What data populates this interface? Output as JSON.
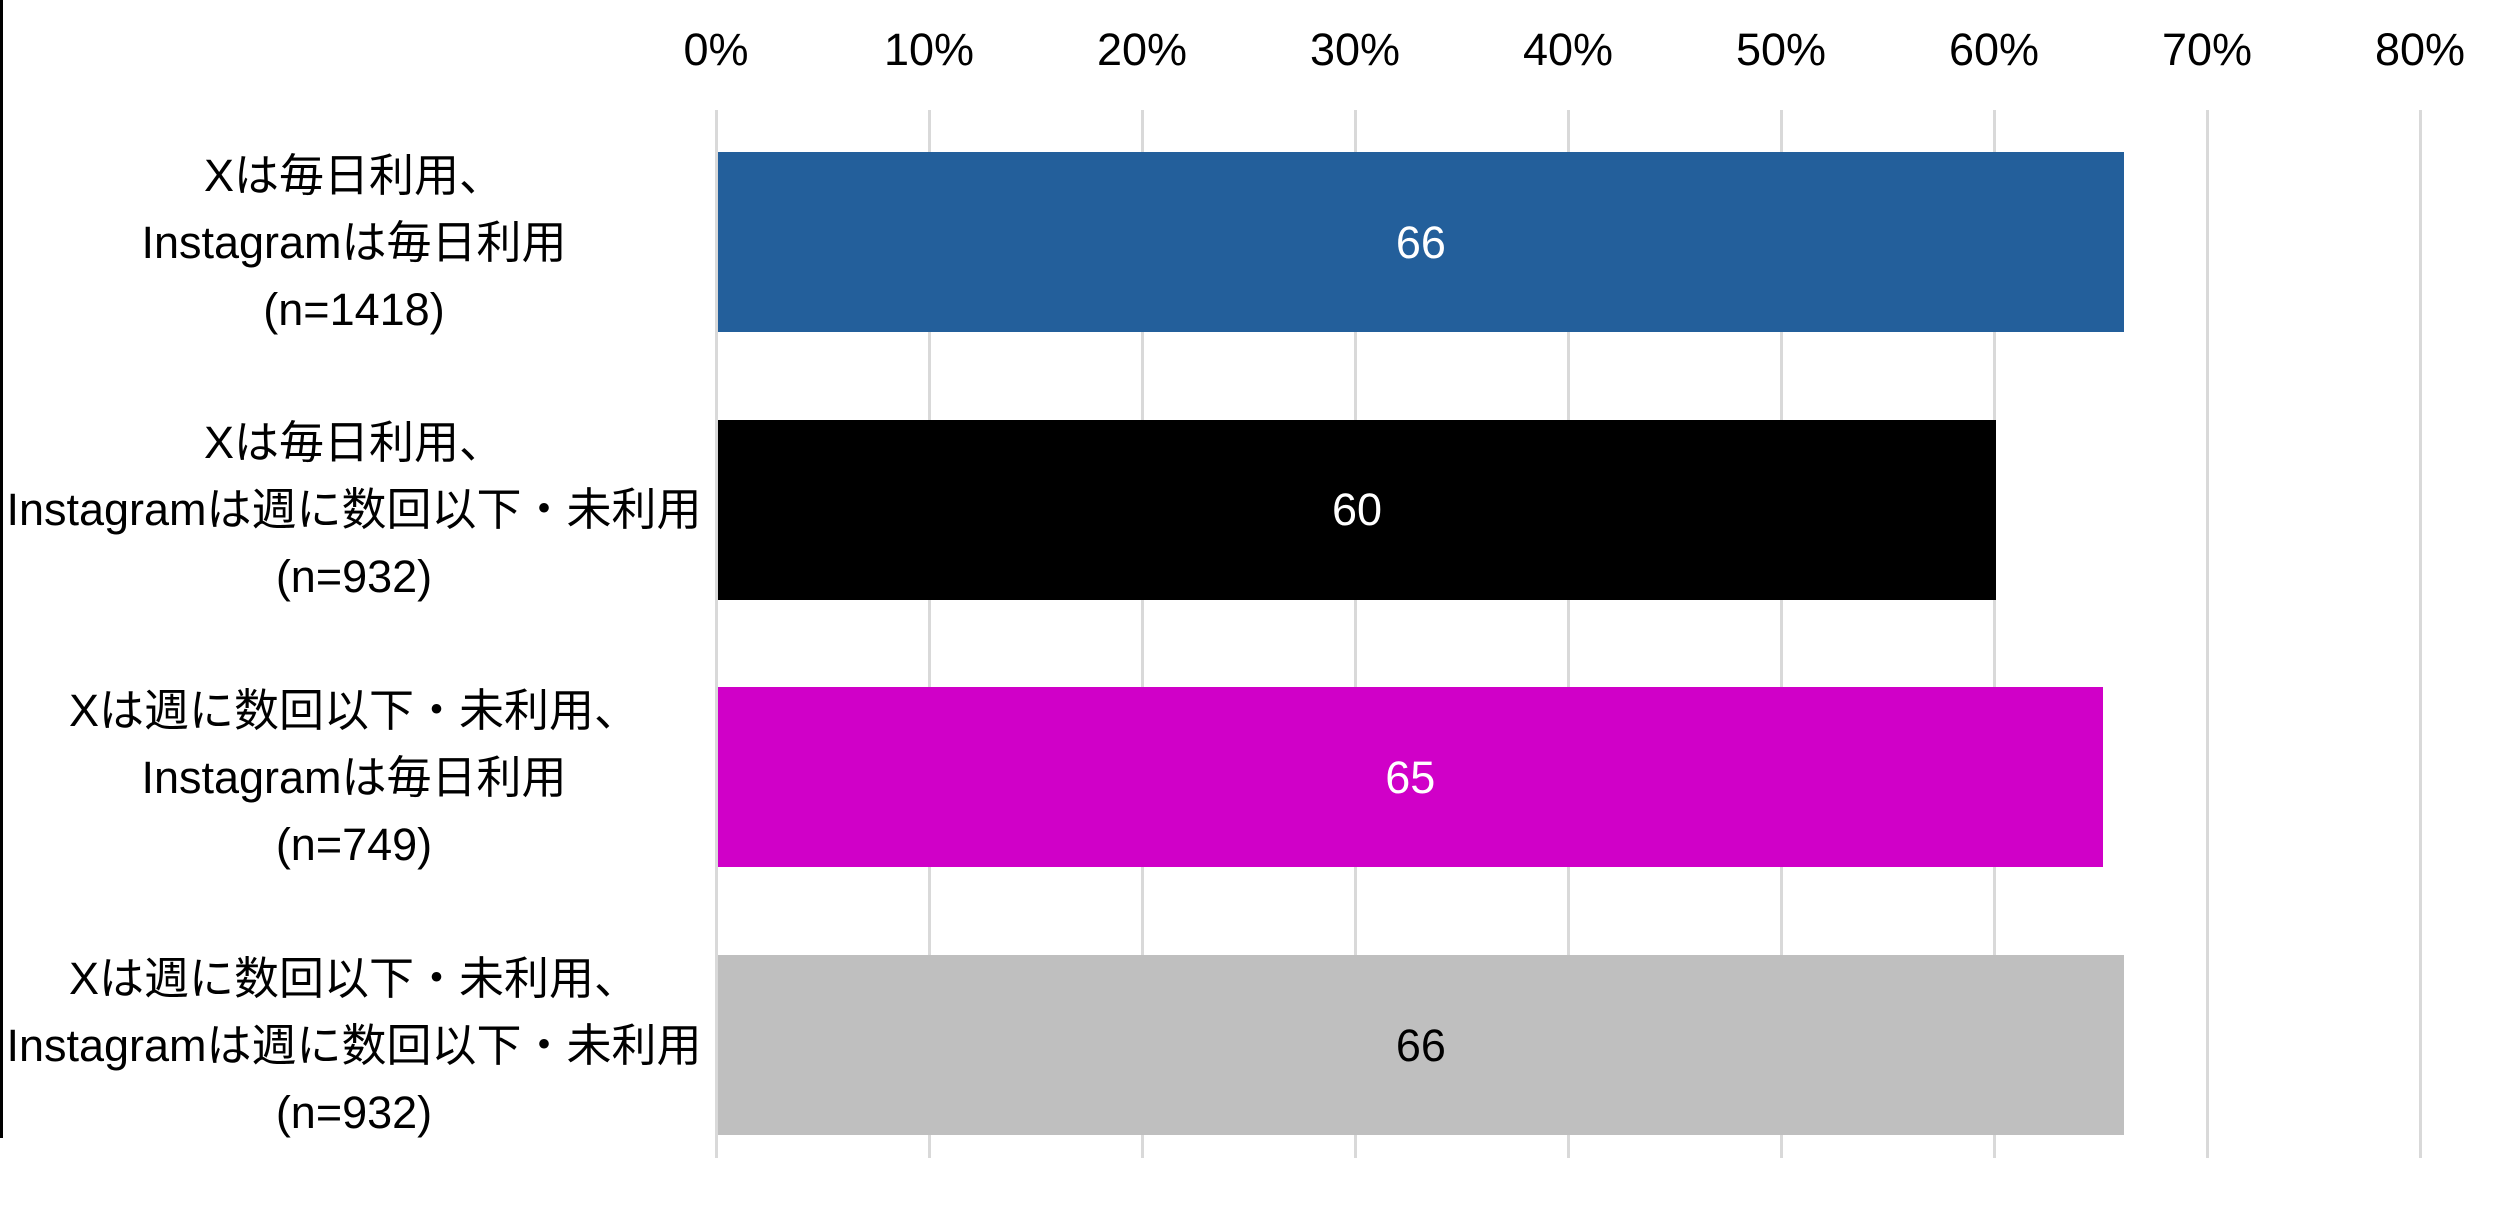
{
  "chart_data": {
    "type": "bar",
    "orientation": "horizontal",
    "title": "",
    "x_axis": {
      "position": "top",
      "min": 0,
      "max": 80,
      "tick_step": 10,
      "unit": "%",
      "ticks": [
        "0%",
        "10%",
        "20%",
        "30%",
        "40%",
        "50%",
        "60%",
        "70%",
        "80%"
      ],
      "grid": true
    },
    "categories": [
      {
        "lines": [
          "Xは毎日利用、",
          "Instagramは毎日利用",
          "(n=1418)"
        ]
      },
      {
        "lines": [
          "Xは毎日利用、",
          "Instagramは週に数回以下・未利用",
          "(n=932)"
        ]
      },
      {
        "lines": [
          "Xは週に数回以下・未利用、",
          "Instagramは毎日利用",
          "(n=749)"
        ]
      },
      {
        "lines": [
          "Xは週に数回以下・未利用、",
          "Instagramは週に数回以下・未利用",
          "(n=932)"
        ]
      }
    ],
    "values": [
      66,
      60,
      65,
      66
    ],
    "data_labels": [
      "66",
      "60",
      "65",
      "66"
    ],
    "colors": {
      "bars": [
        "#235F9B",
        "#000000",
        "#D000C8",
        "#BFBFBF"
      ],
      "data_labels": [
        "#FFFFFF",
        "#FFFFFF",
        "#FFFFFF",
        "#000000"
      ],
      "gridline": "#D9D9D9",
      "axis_text": "#000000",
      "border_left": "#000000",
      "background": "#FFFFFF"
    },
    "legend_position": "none"
  }
}
